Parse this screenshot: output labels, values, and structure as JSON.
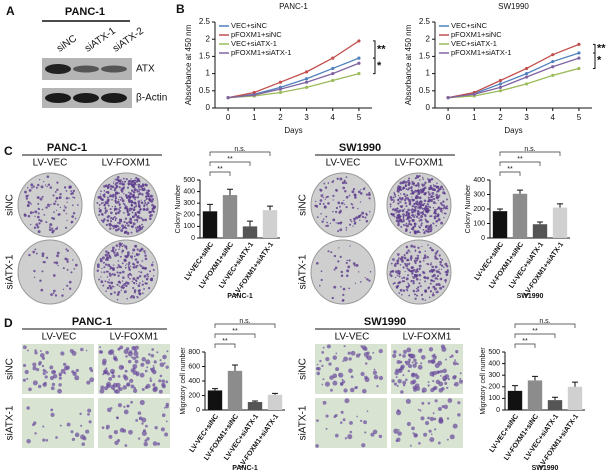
{
  "panel_labels": [
    "A",
    "B",
    "C",
    "D"
  ],
  "blot": {
    "title": "PANC-1",
    "lanes": [
      "siNC",
      "siATX-1",
      "siATX-2"
    ],
    "bands": [
      "ATX",
      "β-Actin"
    ]
  },
  "panel_c": {
    "cell_lines": [
      "PANC-1",
      "SW1990"
    ],
    "columns": [
      "LV-VEC",
      "LV-FOXM1"
    ],
    "rows": [
      "siNC",
      "siATX-1"
    ]
  },
  "panel_d": {
    "cell_lines": [
      "PANC-1",
      "SW1990"
    ],
    "columns": [
      "LV-VEC",
      "LV-FOXM1"
    ],
    "rows": [
      "siNC",
      "siATX-1"
    ]
  },
  "chart_data": [
    {
      "type": "line",
      "title": "PANC-1",
      "xlabel": "Days",
      "ylabel": "Absorbance at 450 nm",
      "x": [
        0,
        1,
        2,
        3,
        4,
        5
      ],
      "xlim": [
        -0.5,
        5.5
      ],
      "xticks": [
        0,
        1,
        2,
        3,
        4,
        5
      ],
      "ylim": [
        0,
        2.5
      ],
      "yticks": [
        0,
        0.5,
        1,
        1.5,
        2,
        2.5
      ],
      "series": [
        {
          "name": "VEC+siNC",
          "color": "#4f81bd",
          "values": [
            0.3,
            0.4,
            0.6,
            0.85,
            1.15,
            1.45
          ]
        },
        {
          "name": "pFOXM1+siNC",
          "color": "#c0504d",
          "values": [
            0.3,
            0.45,
            0.75,
            1.05,
            1.45,
            1.95
          ]
        },
        {
          "name": "VEC+siATX-1",
          "color": "#9bbb59",
          "values": [
            0.3,
            0.35,
            0.45,
            0.6,
            0.8,
            1.0
          ]
        },
        {
          "name": "pFOXM1+siATX-1",
          "color": "#8064a2",
          "values": [
            0.3,
            0.38,
            0.55,
            0.75,
            1.0,
            1.3
          ]
        }
      ],
      "annotations": [
        "**",
        "*"
      ]
    },
    {
      "type": "line",
      "title": "SW1990",
      "xlabel": "Days",
      "ylabel": "Absorbance at 450 nm",
      "x": [
        0,
        1,
        2,
        3,
        4,
        5
      ],
      "xlim": [
        -0.5,
        5.5
      ],
      "xticks": [
        0,
        1,
        2,
        3,
        4,
        5
      ],
      "ylim": [
        0,
        2.5
      ],
      "yticks": [
        0,
        0.5,
        1,
        1.5,
        2,
        2.5
      ],
      "series": [
        {
          "name": "VEC+siNC",
          "color": "#4f81bd",
          "values": [
            0.3,
            0.42,
            0.7,
            1.0,
            1.35,
            1.6
          ]
        },
        {
          "name": "pFOXM1+siNC",
          "color": "#c0504d",
          "values": [
            0.3,
            0.45,
            0.8,
            1.15,
            1.55,
            1.85
          ]
        },
        {
          "name": "VEC+siATX-1",
          "color": "#9bbb59",
          "values": [
            0.3,
            0.35,
            0.5,
            0.7,
            0.95,
            1.15
          ]
        },
        {
          "name": "pFOXM1+siATX-1",
          "color": "#8064a2",
          "values": [
            0.3,
            0.4,
            0.6,
            0.9,
            1.2,
            1.45
          ]
        }
      ],
      "annotations": [
        "**",
        "*"
      ]
    },
    {
      "type": "bar",
      "xlabel": "PANC-1",
      "ylabel": "Colony Number",
      "categories": [
        "LV-VEC+siNC",
        "LV-FOXM1+siNC",
        "LV-VEC+siATX-1",
        "LV-FOXM1+siATX-1"
      ],
      "values": [
        230,
        370,
        100,
        240
      ],
      "errors": [
        60,
        50,
        45,
        35
      ],
      "colors": [
        "#111111",
        "#8c8c8c",
        "#555555",
        "#d0d0d0"
      ],
      "ylim": [
        0,
        500
      ],
      "yticks": [
        0,
        100,
        200,
        300,
        400,
        500
      ],
      "annotations": [
        "**",
        "**",
        "n.s."
      ]
    },
    {
      "type": "bar",
      "xlabel": "SW1990",
      "ylabel": "Colony Number",
      "categories": [
        "LV-VEC+siNC",
        "LV-FOXM1+siNC",
        "LV-VEC+siATX-1",
        "LV-FOXM1+siATX-1"
      ],
      "values": [
        185,
        305,
        95,
        210
      ],
      "errors": [
        15,
        25,
        15,
        25
      ],
      "colors": [
        "#111111",
        "#8c8c8c",
        "#555555",
        "#d0d0d0"
      ],
      "ylim": [
        0,
        400
      ],
      "yticks": [
        0,
        100,
        200,
        300,
        400
      ],
      "annotations": [
        "**",
        "**",
        "n.s."
      ]
    },
    {
      "type": "bar",
      "xlabel": "PANC-1",
      "ylabel": "Migratory cell number",
      "categories": [
        "LV-VEC+siNC",
        "LV-FOXM1+siNC",
        "LV-VEC+siATX-1",
        "LV-FOXM1+siATX-1"
      ],
      "values": [
        270,
        540,
        110,
        210
      ],
      "errors": [
        25,
        80,
        15,
        20
      ],
      "colors": [
        "#111111",
        "#8c8c8c",
        "#555555",
        "#d0d0d0"
      ],
      "ylim": [
        0,
        800
      ],
      "yticks": [
        0,
        200,
        400,
        600,
        800
      ],
      "annotations": [
        "**",
        "**",
        "n.s."
      ]
    },
    {
      "type": "bar",
      "xlabel": "SW1990",
      "ylabel": "Migratory cell number",
      "categories": [
        "LV-VEC+siNC",
        "LV-FOXM1+siNC",
        "LV-VEC+siATX-1",
        "LV-FOXM1+siATX-1"
      ],
      "values": [
        165,
        255,
        85,
        200
      ],
      "errors": [
        45,
        35,
        25,
        40
      ],
      "colors": [
        "#111111",
        "#8c8c8c",
        "#555555",
        "#d0d0d0"
      ],
      "ylim": [
        0,
        500
      ],
      "yticks": [
        0,
        100,
        200,
        300,
        400,
        500
      ],
      "annotations": [
        "**",
        "**",
        "n.s."
      ]
    }
  ]
}
